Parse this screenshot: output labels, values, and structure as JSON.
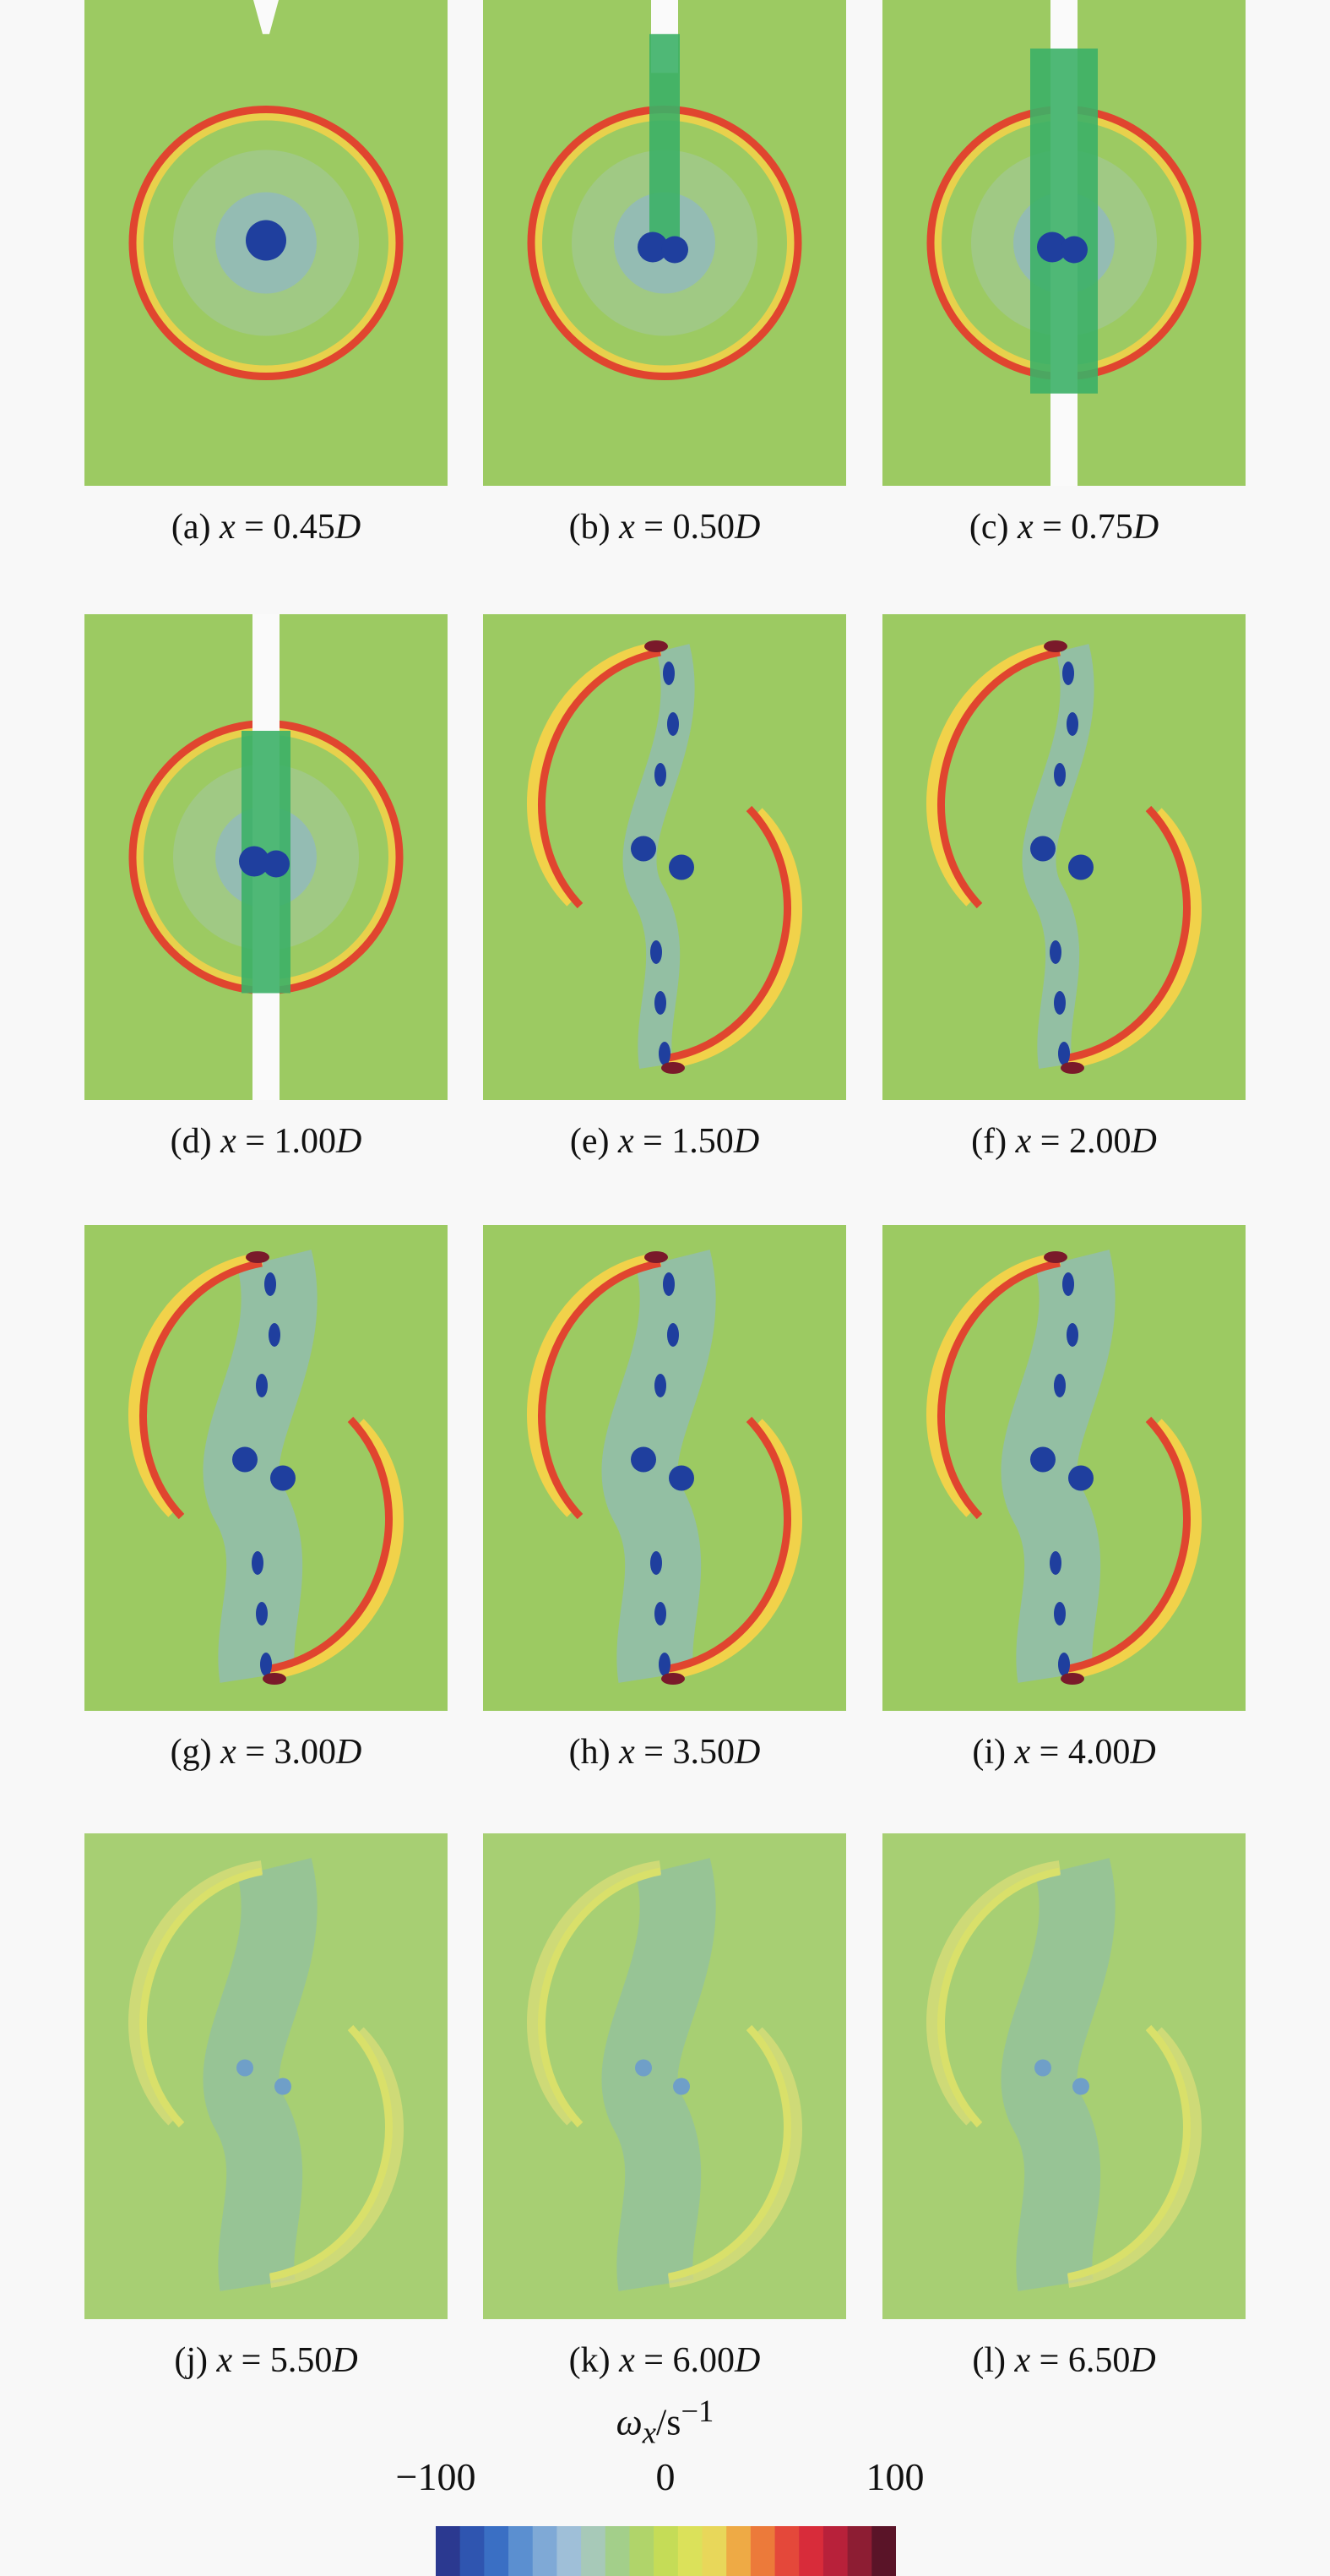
{
  "panels": [
    {
      "id": "a",
      "letter": "(a)",
      "value": "0.45",
      "stage": 0
    },
    {
      "id": "b",
      "letter": "(b)",
      "value": "0.50",
      "stage": 1
    },
    {
      "id": "c",
      "letter": "(c)",
      "value": "0.75",
      "stage": 2
    },
    {
      "id": "d",
      "letter": "(d)",
      "value": "1.00",
      "stage": 3
    },
    {
      "id": "e",
      "letter": "(e)",
      "value": "1.50",
      "stage": 4
    },
    {
      "id": "f",
      "letter": "(f)",
      "value": "2.00",
      "stage": 5
    },
    {
      "id": "g",
      "letter": "(g)",
      "value": "3.00",
      "stage": 6
    },
    {
      "id": "h",
      "letter": "(h)",
      "value": "3.50",
      "stage": 7
    },
    {
      "id": "i",
      "letter": "(i)",
      "value": "4.00",
      "stage": 8
    },
    {
      "id": "j",
      "letter": "(j)",
      "value": "5.50",
      "stage": 9
    },
    {
      "id": "k",
      "letter": "(k)",
      "value": "6.00",
      "stage": 10
    },
    {
      "id": "l",
      "letter": "(l)",
      "value": "6.50",
      "stage": 11
    }
  ],
  "caption_parts": {
    "variable": "x",
    "equals": " = ",
    "unit": "D"
  },
  "colorbar": {
    "quantity": "ω",
    "subscript": "x",
    "unit": "/s",
    "unit_exponent": "−1",
    "ticks": [
      "−100",
      "0",
      "100"
    ],
    "range": [
      -100,
      100
    ],
    "colors": [
      "#2b3990",
      "#2f55b0",
      "#3a6fc4",
      "#5b8fd0",
      "#7fa9d6",
      "#9fbfd8",
      "#a7c9b8",
      "#a3cf8a",
      "#b0d46a",
      "#c5dc57",
      "#dbe15a",
      "#e8d75a",
      "#eeaa45",
      "#ec7a3a",
      "#e4483a",
      "#d82c3a",
      "#b8213a",
      "#8d1d33",
      "#5a1428"
    ]
  },
  "colors": {
    "background_field": "#9cca62",
    "cylinder": "#3cb067",
    "vortex_core": "#1f3f9e",
    "ring": "#e0452f",
    "ring_inner": "#f1d24a"
  }
}
